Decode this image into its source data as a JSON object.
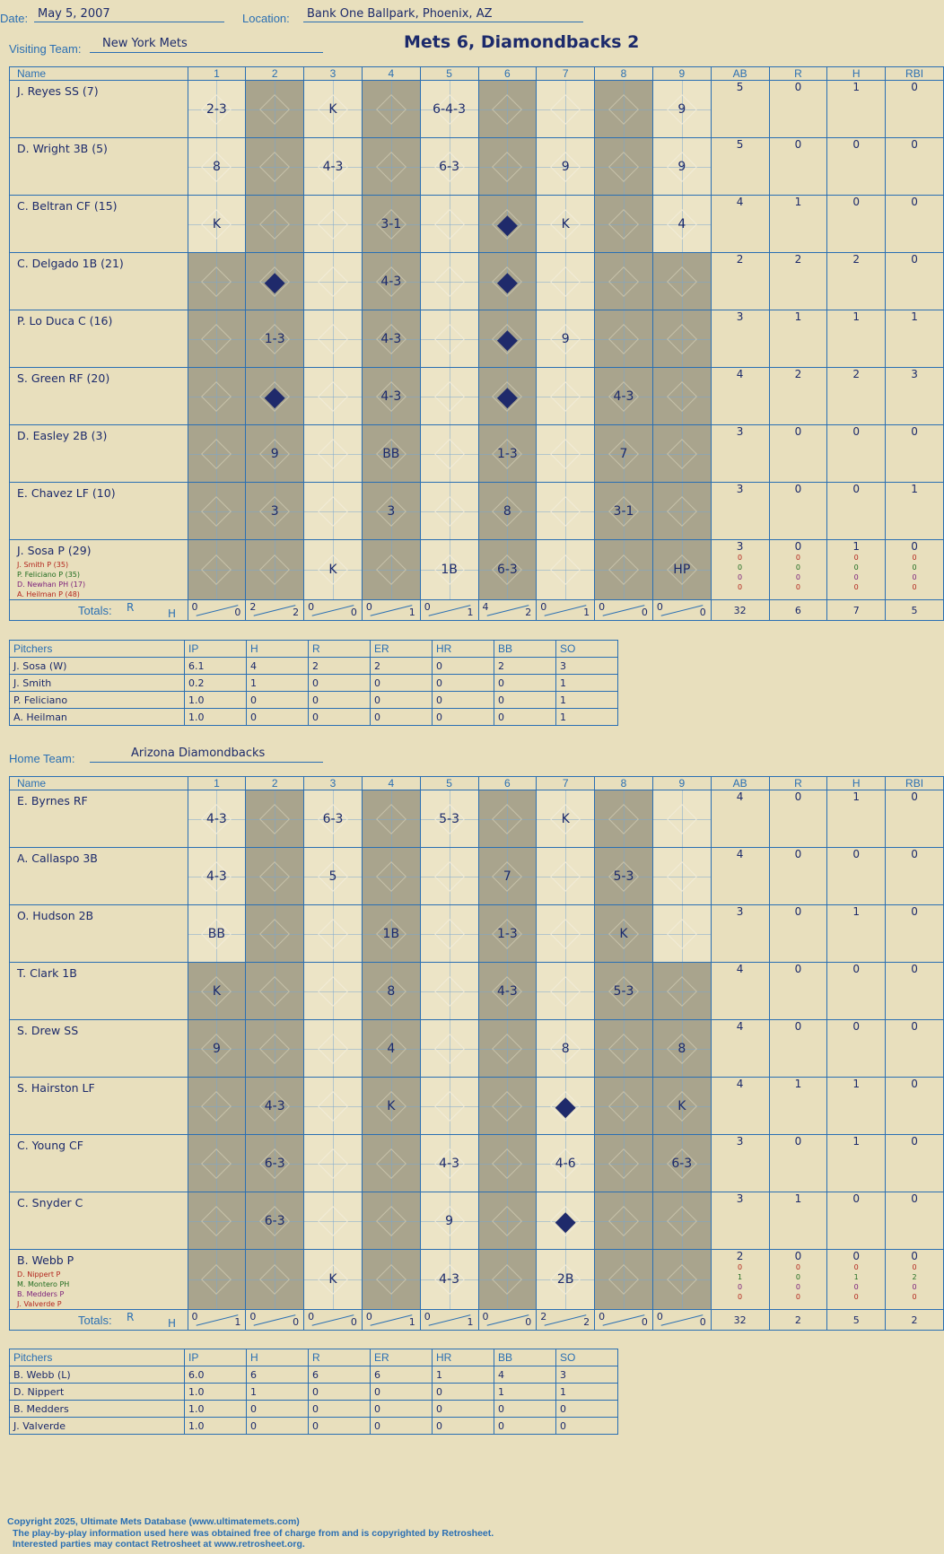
{
  "header": {
    "date_label": "Date:",
    "date": "May 5, 2007",
    "location_label": "Location:",
    "location": "Bank One Ballpark, Phoenix, AZ",
    "score_title": "Mets 6, Diamondbacks 2"
  },
  "visitor": {
    "team_label": "Visiting Team:",
    "team": "New York Mets",
    "columns": [
      "Name",
      "1",
      "2",
      "3",
      "4",
      "5",
      "6",
      "7",
      "8",
      "9",
      "AB",
      "R",
      "H",
      "RBI"
    ],
    "rows": [
      {
        "name": "J. Reyes SS (7)",
        "subs": [],
        "plays": [
          "2-3",
          "",
          "K",
          "",
          "6-4-3",
          "",
          "",
          "",
          "9"
        ],
        "ab": "5",
        "r": "0",
        "h": "1",
        "rbi": "0"
      },
      {
        "name": "D. Wright 3B (5)",
        "subs": [],
        "plays": [
          "8",
          "",
          "4-3",
          "",
          "6-3",
          "",
          "9",
          "",
          "9"
        ],
        "ab": "5",
        "r": "0",
        "h": "0",
        "rbi": "0"
      },
      {
        "name": "C. Beltran CF (15)",
        "subs": [],
        "plays": [
          "K",
          "",
          "",
          "3-1",
          "",
          "◆",
          "K",
          "",
          "4"
        ],
        "ab": "4",
        "r": "1",
        "h": "0",
        "rbi": "0"
      },
      {
        "name": "C. Delgado 1B (21)",
        "subs": [],
        "plays": [
          "",
          "◆",
          "",
          "4-3",
          "",
          "◆",
          "",
          "",
          ""
        ],
        "ab": "2",
        "r": "2",
        "h": "2",
        "rbi": "0"
      },
      {
        "name": "P. Lo Duca C (16)",
        "subs": [],
        "plays": [
          "",
          "1-3",
          "",
          "4-3",
          "",
          "◆",
          "9",
          "",
          ""
        ],
        "ab": "3",
        "r": "1",
        "h": "1",
        "rbi": "1"
      },
      {
        "name": "S. Green RF (20)",
        "subs": [],
        "plays": [
          "",
          "◆",
          "",
          "4-3",
          "",
          "◆",
          "",
          "4-3",
          ""
        ],
        "ab": "4",
        "r": "2",
        "h": "2",
        "rbi": "3"
      },
      {
        "name": "D. Easley 2B (3)",
        "subs": [],
        "plays": [
          "",
          "9",
          "",
          "BB",
          "",
          "1-3",
          "",
          "7",
          ""
        ],
        "ab": "3",
        "r": "0",
        "h": "0",
        "rbi": "0"
      },
      {
        "name": "E. Chavez LF (10)",
        "subs": [],
        "plays": [
          "",
          "3",
          "",
          "3",
          "",
          "8",
          "",
          "3-1",
          ""
        ],
        "ab": "3",
        "r": "0",
        "h": "0",
        "rbi": "1"
      },
      {
        "name": "J. Sosa P (29)",
        "subs": [
          "J. Smith P (35)",
          "P. Feliciano P (35)",
          "D. Newhan PH (17)",
          "A. Heilman P (48)"
        ],
        "plays": [
          "",
          "",
          "K",
          "",
          "1B",
          "6-3",
          "",
          "",
          "HP"
        ],
        "ab": "3",
        "r": "0",
        "h": "1",
        "rbi": "0",
        "sub_stats": [
          [
            "0",
            "0",
            "0",
            "0"
          ],
          [
            "0",
            "0",
            "0",
            "0"
          ],
          [
            "0",
            "0",
            "0",
            "0"
          ],
          [
            "0",
            "0",
            "0",
            "0"
          ]
        ]
      }
    ],
    "totals_label": "Totals:",
    "totals_rh": [
      "R",
      "H"
    ],
    "innings_totals": [
      [
        "0",
        "0"
      ],
      [
        "2",
        "2"
      ],
      [
        "0",
        "0"
      ],
      [
        "0",
        "1"
      ],
      [
        "0",
        "1"
      ],
      [
        "4",
        "2"
      ],
      [
        "0",
        "1"
      ],
      [
        "0",
        "0"
      ],
      [
        "0",
        "0"
      ]
    ],
    "totals": {
      "ab": "32",
      "r": "6",
      "h": "7",
      "rbi": "5"
    },
    "pitchers_header": [
      "Pitchers",
      "IP",
      "H",
      "R",
      "ER",
      "HR",
      "BB",
      "SO"
    ],
    "pitchers": [
      [
        "J. Sosa (W)",
        "6.1",
        "4",
        "2",
        "2",
        "0",
        "2",
        "3"
      ],
      [
        "J. Smith",
        "0.2",
        "1",
        "0",
        "0",
        "0",
        "0",
        "1"
      ],
      [
        "P. Feliciano",
        "1.0",
        "0",
        "0",
        "0",
        "0",
        "0",
        "1"
      ],
      [
        "A. Heilman",
        "1.0",
        "0",
        "0",
        "0",
        "0",
        "0",
        "1"
      ]
    ]
  },
  "home": {
    "team_label": "Home Team:",
    "team": "Arizona Diamondbacks",
    "columns": [
      "Name",
      "1",
      "2",
      "3",
      "4",
      "5",
      "6",
      "7",
      "8",
      "9",
      "AB",
      "R",
      "H",
      "RBI"
    ],
    "rows": [
      {
        "name": "E. Byrnes RF",
        "subs": [],
        "plays": [
          "4-3",
          "",
          "6-3",
          "",
          "5-3",
          "",
          "K",
          "",
          ""
        ],
        "ab": "4",
        "r": "0",
        "h": "1",
        "rbi": "0"
      },
      {
        "name": "A. Callaspo 3B",
        "subs": [],
        "plays": [
          "4-3",
          "",
          "5",
          "",
          "",
          "7",
          "",
          "5-3",
          ""
        ],
        "ab": "4",
        "r": "0",
        "h": "0",
        "rbi": "0"
      },
      {
        "name": "O. Hudson 2B",
        "subs": [],
        "plays": [
          "BB",
          "",
          "",
          "1B",
          "",
          "1-3",
          "",
          "K",
          ""
        ],
        "ab": "3",
        "r": "0",
        "h": "1",
        "rbi": "0"
      },
      {
        "name": "T. Clark 1B",
        "subs": [],
        "plays": [
          "K",
          "",
          "",
          "8",
          "",
          "4-3",
          "",
          "5-3",
          ""
        ],
        "ab": "4",
        "r": "0",
        "h": "0",
        "rbi": "0"
      },
      {
        "name": "S. Drew SS",
        "subs": [],
        "plays": [
          "9",
          "",
          "",
          "4",
          "",
          "",
          "8",
          "",
          "8"
        ],
        "ab": "4",
        "r": "0",
        "h": "0",
        "rbi": "0"
      },
      {
        "name": "S. Hairston LF",
        "subs": [],
        "plays": [
          "",
          "4-3",
          "",
          "K",
          "",
          "",
          "◆",
          "",
          "K"
        ],
        "ab": "4",
        "r": "1",
        "h": "1",
        "rbi": "0"
      },
      {
        "name": "C. Young CF",
        "subs": [],
        "plays": [
          "",
          "6-3",
          "",
          "",
          "4-3",
          "",
          "4-6",
          "",
          "6-3"
        ],
        "ab": "3",
        "r": "0",
        "h": "1",
        "rbi": "0"
      },
      {
        "name": "C. Snyder C",
        "subs": [],
        "plays": [
          "",
          "6-3",
          "",
          "",
          "9",
          "",
          "◆",
          "",
          ""
        ],
        "ab": "3",
        "r": "1",
        "h": "0",
        "rbi": "0"
      },
      {
        "name": "B. Webb P",
        "subs": [
          "D. Nippert P",
          "M. Montero PH",
          "B. Medders P",
          "J. Valverde P"
        ],
        "plays": [
          "",
          "",
          "K",
          "",
          "4-3",
          "",
          "2B",
          "",
          ""
        ],
        "ab": "2",
        "r": "0",
        "h": "0",
        "rbi": "0",
        "sub_stats": [
          [
            "0",
            "0",
            "0",
            "0"
          ],
          [
            "1",
            "0",
            "1",
            "2"
          ],
          [
            "0",
            "0",
            "0",
            "0"
          ],
          [
            "0",
            "0",
            "0",
            "0"
          ]
        ]
      }
    ],
    "totals_label": "Totals:",
    "totals_rh": [
      "R",
      "H"
    ],
    "innings_totals": [
      [
        "0",
        "1"
      ],
      [
        "0",
        "0"
      ],
      [
        "0",
        "0"
      ],
      [
        "0",
        "1"
      ],
      [
        "0",
        "1"
      ],
      [
        "0",
        "0"
      ],
      [
        "2",
        "2"
      ],
      [
        "0",
        "0"
      ],
      [
        "0",
        "0"
      ]
    ],
    "totals": {
      "ab": "32",
      "r": "2",
      "h": "5",
      "rbi": "2"
    },
    "pitchers_header": [
      "Pitchers",
      "IP",
      "H",
      "R",
      "ER",
      "HR",
      "BB",
      "SO"
    ],
    "pitchers": [
      [
        "B. Webb (L)",
        "6.0",
        "6",
        "6",
        "6",
        "1",
        "4",
        "3"
      ],
      [
        "D. Nippert",
        "1.0",
        "1",
        "0",
        "0",
        "0",
        "1",
        "1"
      ],
      [
        "B. Medders",
        "1.0",
        "0",
        "0",
        "0",
        "0",
        "0",
        "0"
      ],
      [
        "J. Valverde",
        "1.0",
        "0",
        "0",
        "0",
        "0",
        "0",
        "0"
      ]
    ]
  },
  "footer": {
    "line1": "Copyright 2025, Ultimate Mets Database (www.ultimatemets.com)",
    "line2": "The play-by-play information used here was obtained free of charge from and is copyrighted by Retrosheet.",
    "line3": "Interested parties may contact Retrosheet at www.retrosheet.org."
  }
}
